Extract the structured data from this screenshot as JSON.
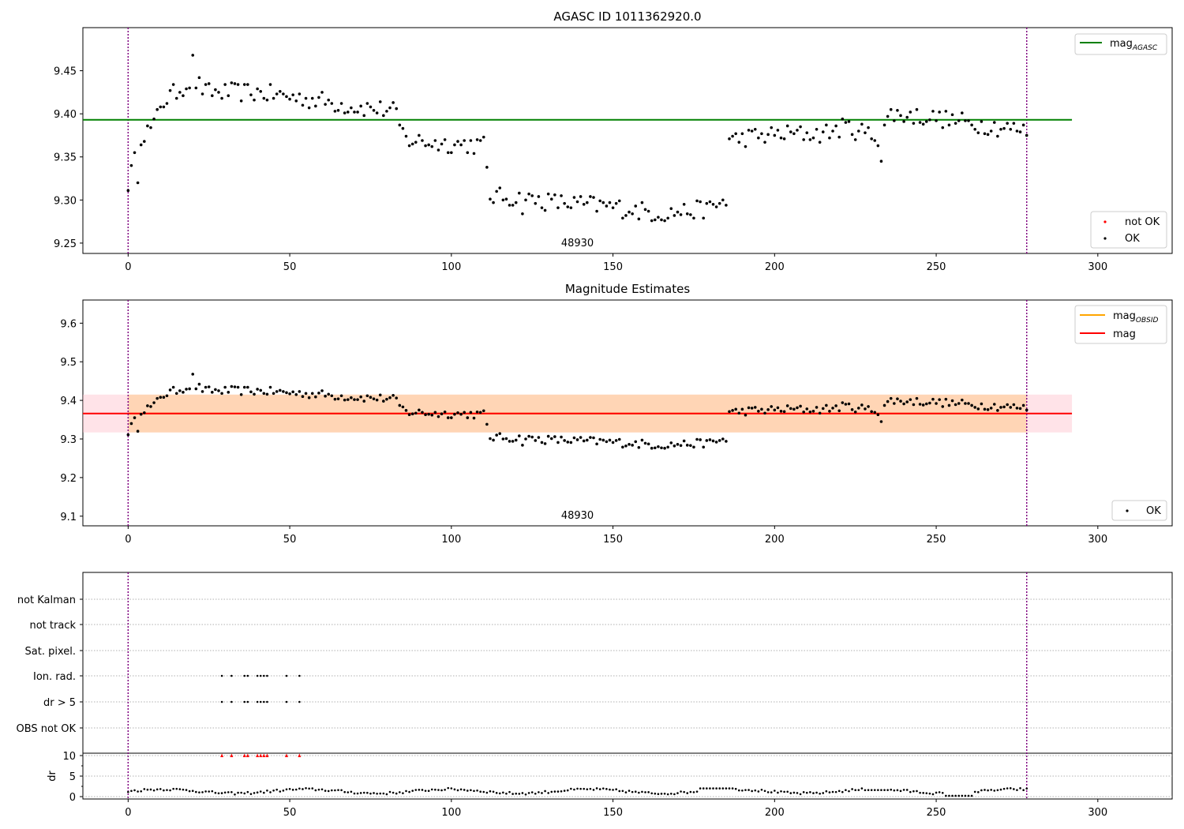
{
  "chart_data": [
    {
      "type": "scatter",
      "title": "AGASC ID 1011362920.0",
      "xlim": [
        -14,
        323
      ],
      "ylim": [
        9.238,
        9.5
      ],
      "yticks": [
        9.25,
        9.3,
        9.35,
        9.4,
        9.45
      ],
      "yticklabels": [
        "9.25",
        "9.30",
        "9.35",
        "9.40",
        "9.45"
      ],
      "xticks": [
        0,
        50,
        100,
        150,
        200,
        250,
        300
      ],
      "xticklabels": [
        "0",
        "50",
        "100",
        "150",
        "200",
        "250",
        "300"
      ],
      "mag_agasc": 9.393,
      "hline_xrange": [
        -14,
        292
      ],
      "vlines": [
        0,
        278
      ],
      "obsid_label": "48930",
      "obsid_label_x": 139,
      "grid": false,
      "legend_upper": {
        "placement": "top-right",
        "entries": [
          {
            "label": "mag",
            "subscript": "AGASC",
            "color": "#008000",
            "marker": "line"
          }
        ]
      },
      "legend_lower": {
        "placement": "bottom-right",
        "entries": [
          {
            "label": "not OK",
            "color": "#ff0000",
            "marker": "dot"
          },
          {
            "label": "OK",
            "color": "#000000",
            "marker": "dot"
          }
        ]
      },
      "series": [
        {
          "name": "OK",
          "color": "#000000",
          "x": [],
          "y": []
        }
      ]
    },
    {
      "type": "scatter",
      "title": "Magnitude Estimates",
      "xlim": [
        -14,
        323
      ],
      "ylim": [
        9.075,
        9.66
      ],
      "yticks": [
        9.1,
        9.2,
        9.3,
        9.4,
        9.5,
        9.6
      ],
      "yticklabels": [
        "9.1",
        "9.2",
        "9.3",
        "9.4",
        "9.5",
        "9.6"
      ],
      "xticks": [
        0,
        50,
        100,
        150,
        200,
        250,
        300
      ],
      "xticklabels": [
        "0",
        "50",
        "100",
        "150",
        "200",
        "250",
        "300"
      ],
      "mag": 9.366,
      "mag_obsid": 9.366,
      "band_mag": [
        9.317,
        9.415
      ],
      "band_obsid": [
        9.317,
        9.415
      ],
      "band_obsid_xrange": [
        0,
        278
      ],
      "hline_xrange": [
        -14,
        292
      ],
      "vlines": [
        0,
        278
      ],
      "obsid_label": "48930",
      "obsid_label_x": 139,
      "grid": false,
      "legend_upper": {
        "placement": "top-right",
        "entries": [
          {
            "label": "mag",
            "subscript": "OBSID",
            "color": "#ffa500",
            "marker": "line"
          },
          {
            "label": "mag",
            "subscript": "",
            "color": "#ff0000",
            "marker": "line"
          }
        ]
      },
      "legend_lower": {
        "placement": "bottom-right",
        "entries": [
          {
            "label": "OK",
            "color": "#000000",
            "marker": "dot"
          }
        ]
      },
      "series": [
        {
          "name": "OK",
          "color": "#000000",
          "x": [],
          "y": []
        }
      ]
    },
    {
      "type": "scatter",
      "title": "",
      "xlim": [
        -14,
        323
      ],
      "xticks": [
        0,
        50,
        100,
        150,
        200,
        250,
        300
      ],
      "xticklabels": [
        "0",
        "50",
        "100",
        "150",
        "200",
        "250",
        "300"
      ],
      "flag_rows": [
        "not Kalman",
        "not track",
        "Sat. pixel.",
        "Ion. rad.",
        "dr > 5",
        "OBS not OK"
      ],
      "flag_points": {
        "not Kalman": [],
        "not track": [],
        "Sat. pixel.": [],
        "Ion. rad.": [
          29,
          32,
          36,
          37,
          40,
          41,
          42,
          43,
          49,
          53
        ],
        "dr > 5": [
          29,
          32,
          36,
          37,
          40,
          41,
          42,
          43,
          49,
          53
        ],
        "OBS not OK": []
      },
      "dr_ylabel": "dr",
      "dr_ylim": [
        -0.5,
        10.5
      ],
      "dr_yticks": [
        0,
        5,
        10
      ],
      "dr_yticklabels": [
        "0",
        "5",
        "10"
      ],
      "dr_red_x": [
        29,
        32,
        36,
        37,
        40,
        41,
        42,
        43,
        49,
        53
      ],
      "dr_red_value": 10,
      "vlines": [
        0,
        278
      ],
      "grid": "dotted horizontal",
      "series": [
        {
          "name": "dr",
          "color": "#000000",
          "x": [],
          "y": []
        }
      ]
    }
  ]
}
